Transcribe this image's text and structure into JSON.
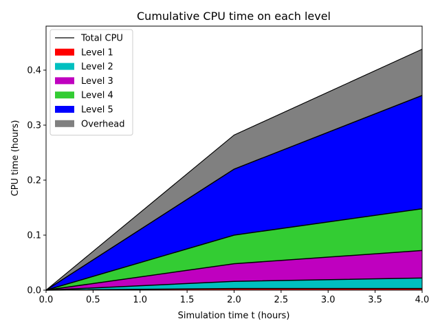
{
  "chart_data": {
    "type": "area",
    "title": "Cumulative CPU time on each level",
    "xlabel": "Simulation time t (hours)",
    "ylabel": "CPU time (hours)",
    "xlim": [
      0,
      4
    ],
    "ylim": [
      0,
      0.48
    ],
    "x_ticks": [
      "0.0",
      "0.5",
      "1.0",
      "1.5",
      "2.0",
      "2.5",
      "3.0",
      "3.5",
      "4.0"
    ],
    "y_ticks": [
      "0.0",
      "0.1",
      "0.2",
      "0.3",
      "0.4"
    ],
    "x": [
      0,
      2,
      4
    ],
    "grid": false,
    "legend_position": "top-left",
    "total": {
      "name": "Total CPU",
      "color": "#000000",
      "values": [
        0,
        0.282,
        0.438
      ]
    },
    "series": [
      {
        "name": "Level 1",
        "color": "#ff0000",
        "values": [
          0,
          0.003,
          0.003
        ]
      },
      {
        "name": "Level 2",
        "color": "#00bfbf",
        "values": [
          0,
          0.013,
          0.019
        ]
      },
      {
        "name": "Level 3",
        "color": "#bf00bf",
        "values": [
          0,
          0.032,
          0.05
        ]
      },
      {
        "name": "Level 4",
        "color": "#33cc33",
        "values": [
          0,
          0.052,
          0.076
        ]
      },
      {
        "name": "Level 5",
        "color": "#0000ff",
        "values": [
          0,
          0.12,
          0.206
        ]
      },
      {
        "name": "Overhead",
        "color": "#808080",
        "values": [
          0,
          0.062,
          0.084
        ]
      }
    ]
  }
}
